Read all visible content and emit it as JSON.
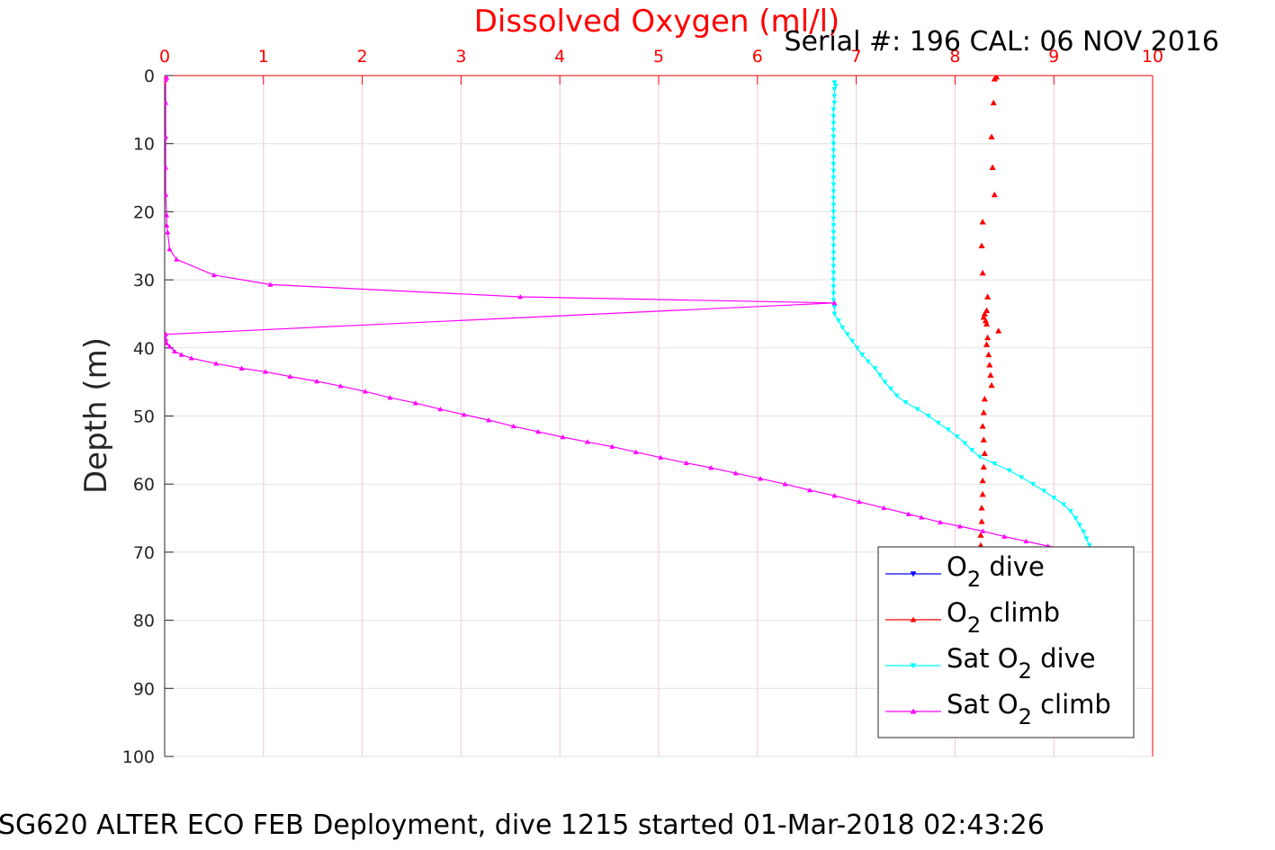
{
  "chart_data": {
    "type": "scatter",
    "title": "Dissolved Oxygen (ml/l)",
    "subtitle": "Serial #: 196  CAL: 06 NOV 2016",
    "ylabel": "Depth (m)",
    "footer": "SG620 ALTER ECO FEB Deployment, dive 1215 started 01-Mar-2018 02:43:26",
    "xlim": [
      0,
      10
    ],
    "ylim": [
      0,
      100
    ],
    "y_reversed": true,
    "x_axis_position": "top",
    "x_ticks": [
      "0",
      "1",
      "2",
      "3",
      "4",
      "5",
      "6",
      "7",
      "8",
      "9",
      "10"
    ],
    "y_ticks": [
      "0",
      "10",
      "20",
      "30",
      "40",
      "50",
      "60",
      "70",
      "80",
      "90",
      "100"
    ],
    "grid": true,
    "legend_position": "bottom-right",
    "colors": {
      "title": "#ff0000",
      "x_axis": "#ff0000",
      "y_axis": "#262626",
      "grid": "#f3c6d6",
      "o2_dive": "#0000ff",
      "o2_climb": "#ff0000",
      "sat_o2_dive": "#00ffff",
      "sat_o2_climb": "#ff00ff"
    },
    "series": [
      {
        "name": "O2 dive",
        "legend_parts": [
          "O",
          "2",
          " dive"
        ],
        "color": "#0000ff",
        "marker": "triangle-down",
        "line": true,
        "points": []
      },
      {
        "name": "O2 climb",
        "legend_parts": [
          "O",
          "2",
          " climb"
        ],
        "color": "#ff0000",
        "marker": "triangle-up",
        "line": false,
        "points": [
          [
            8.42,
            0.2
          ],
          [
            8.4,
            0.5
          ],
          [
            8.39,
            4
          ],
          [
            8.37,
            9
          ],
          [
            8.38,
            13.5
          ],
          [
            8.4,
            17.5
          ],
          [
            8.28,
            21.5
          ],
          [
            8.27,
            25
          ],
          [
            8.28,
            29
          ],
          [
            8.33,
            32.5
          ],
          [
            8.32,
            34.5
          ],
          [
            8.3,
            35.0
          ],
          [
            8.29,
            35.5
          ],
          [
            8.31,
            36.0
          ],
          [
            8.32,
            36.5
          ],
          [
            8.44,
            37.5
          ],
          [
            8.33,
            38.5
          ],
          [
            8.32,
            39.5
          ],
          [
            8.34,
            41
          ],
          [
            8.35,
            42.5
          ],
          [
            8.36,
            44
          ],
          [
            8.37,
            45.5
          ],
          [
            8.3,
            47.5
          ],
          [
            8.29,
            49.5
          ],
          [
            8.28,
            51.5
          ],
          [
            8.29,
            53.5
          ],
          [
            8.3,
            55.5
          ],
          [
            8.29,
            57.5
          ],
          [
            8.28,
            59.5
          ],
          [
            8.28,
            61.5
          ],
          [
            8.27,
            63.5
          ],
          [
            8.27,
            65.5
          ],
          [
            8.26,
            67.5
          ],
          [
            8.26,
            69.0
          ]
        ]
      },
      {
        "name": "Sat O2 dive",
        "legend_parts": [
          "Sat O",
          "2",
          " dive"
        ],
        "color": "#00ffff",
        "marker": "triangle-down",
        "line": true,
        "points": [
          [
            6.78,
            1
          ],
          [
            6.79,
            1.5
          ],
          [
            6.78,
            2
          ],
          [
            6.78,
            3
          ],
          [
            6.78,
            4
          ],
          [
            6.77,
            5
          ],
          [
            6.77,
            6
          ],
          [
            6.77,
            7
          ],
          [
            6.77,
            8
          ],
          [
            6.77,
            9
          ],
          [
            6.77,
            10
          ],
          [
            6.77,
            11
          ],
          [
            6.77,
            12
          ],
          [
            6.77,
            13
          ],
          [
            6.77,
            14
          ],
          [
            6.77,
            15
          ],
          [
            6.77,
            16
          ],
          [
            6.77,
            17
          ],
          [
            6.77,
            18
          ],
          [
            6.77,
            19
          ],
          [
            6.77,
            20
          ],
          [
            6.77,
            21
          ],
          [
            6.77,
            22
          ],
          [
            6.77,
            23
          ],
          [
            6.77,
            24
          ],
          [
            6.77,
            25
          ],
          [
            6.77,
            26
          ],
          [
            6.77,
            27
          ],
          [
            6.77,
            28
          ],
          [
            6.77,
            29
          ],
          [
            6.77,
            30
          ],
          [
            6.77,
            31
          ],
          [
            6.77,
            32
          ],
          [
            6.77,
            33
          ],
          [
            6.78,
            34
          ],
          [
            6.78,
            35
          ],
          [
            6.82,
            36
          ],
          [
            6.86,
            37
          ],
          [
            6.91,
            38
          ],
          [
            6.96,
            39
          ],
          [
            7.01,
            40
          ],
          [
            7.06,
            41
          ],
          [
            7.12,
            42
          ],
          [
            7.19,
            43
          ],
          [
            7.24,
            44
          ],
          [
            7.29,
            45
          ],
          [
            7.35,
            46
          ],
          [
            7.41,
            47
          ],
          [
            7.5,
            48
          ],
          [
            7.62,
            49
          ],
          [
            7.73,
            50
          ],
          [
            7.83,
            51
          ],
          [
            7.93,
            52
          ],
          [
            8.02,
            53
          ],
          [
            8.1,
            54
          ],
          [
            8.17,
            55
          ],
          [
            8.25,
            56
          ],
          [
            8.4,
            57
          ],
          [
            8.55,
            58
          ],
          [
            8.67,
            59
          ],
          [
            8.79,
            60
          ],
          [
            8.9,
            61
          ],
          [
            9.0,
            62
          ],
          [
            9.1,
            63
          ],
          [
            9.17,
            64
          ],
          [
            9.22,
            65
          ],
          [
            9.26,
            66
          ],
          [
            9.3,
            67
          ],
          [
            9.33,
            68
          ],
          [
            9.36,
            69
          ]
        ]
      },
      {
        "name": "Sat O2 climb",
        "legend_parts": [
          "Sat O",
          "2",
          " climb"
        ],
        "color": "#ff00ff",
        "marker": "triangle-up",
        "line": true,
        "points": [
          [
            0.02,
            0.3
          ],
          [
            0.01,
            0.6
          ],
          [
            0.01,
            4
          ],
          [
            0.01,
            9
          ],
          [
            0.01,
            13.5
          ],
          [
            0.01,
            17.5
          ],
          [
            0.02,
            20.5
          ],
          [
            0.02,
            22
          ],
          [
            0.03,
            23
          ],
          [
            0.05,
            25.5
          ],
          [
            0.12,
            27
          ],
          [
            0.5,
            29.3
          ],
          [
            1.07,
            30.7
          ],
          [
            3.6,
            32.5
          ],
          [
            6.78,
            33.4
          ],
          [
            0.01,
            38.0
          ],
          [
            0.01,
            38.7
          ],
          [
            0.02,
            39.3
          ],
          [
            0.05,
            39.8
          ],
          [
            0.1,
            40.5
          ],
          [
            0.17,
            41.0
          ],
          [
            0.27,
            41.5
          ],
          [
            0.52,
            42.3
          ],
          [
            0.78,
            43.0
          ],
          [
            1.02,
            43.5
          ],
          [
            1.27,
            44.2
          ],
          [
            1.54,
            44.9
          ],
          [
            1.78,
            45.6
          ],
          [
            2.03,
            46.4
          ],
          [
            2.28,
            47.3
          ],
          [
            2.54,
            48.1
          ],
          [
            2.79,
            49.0
          ],
          [
            3.03,
            49.8
          ],
          [
            3.28,
            50.6
          ],
          [
            3.53,
            51.5
          ],
          [
            3.78,
            52.3
          ],
          [
            4.03,
            53.1
          ],
          [
            4.28,
            53.8
          ],
          [
            4.53,
            54.5
          ],
          [
            4.77,
            55.3
          ],
          [
            5.02,
            56.1
          ],
          [
            5.28,
            56.9
          ],
          [
            5.53,
            57.6
          ],
          [
            5.78,
            58.4
          ],
          [
            6.03,
            59.2
          ],
          [
            6.28,
            60.0
          ],
          [
            6.53,
            60.9
          ],
          [
            6.78,
            61.7
          ],
          [
            7.03,
            62.6
          ],
          [
            7.28,
            63.5
          ],
          [
            7.53,
            64.4
          ],
          [
            7.66,
            64.9
          ],
          [
            7.85,
            65.6
          ],
          [
            8.05,
            66.2
          ],
          [
            8.28,
            66.9
          ],
          [
            8.5,
            67.7
          ],
          [
            8.72,
            68.4
          ],
          [
            8.94,
            69.1
          ],
          [
            9.16,
            69.6
          ]
        ]
      }
    ]
  }
}
